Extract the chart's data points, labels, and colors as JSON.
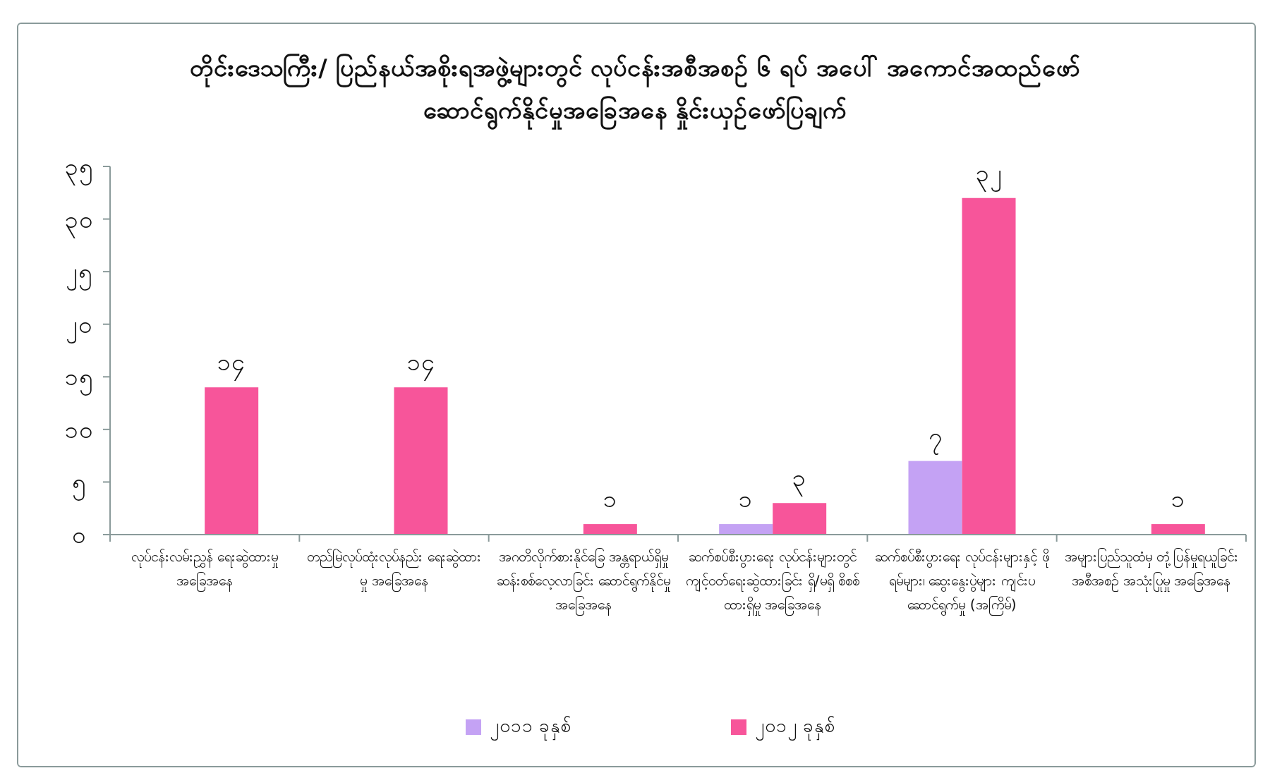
{
  "chart_data": {
    "type": "bar",
    "title": "တိုင်းဒေသကြီး/ ပြည်နယ်အစိုးရအဖွဲ့များတွင် လုပ်ငန်းအစီအစဉ် ၆ ရပ် အပေါ် အကောင်အထည်ဖော်ဆောင်ရွက်နိုင်မှုအခြေအနေ နှိုင်းယှဉ်ဖော်ပြချက်",
    "categories": [
      "လုပ်ငန်းလမ်းညွှန် ရေးဆွဲထားမှု အခြေအနေ",
      "တည်မြဲလုပ်ထုံးလုပ်နည်း ရေးဆွဲထားမှု အခြေအနေ",
      "အဂတိလိုက်စားနိုင်ခြေ အန္တရာယ်ရှိမှု ဆန်းစစ်လေ့လာခြင်း ဆောင်ရွက်နိုင်မှု အခြေအနေ",
      "ဆက်စပ်စီးပွားရေး လုပ်ငန်းများတွင် ကျင့်ဝတ်ရေးဆွဲထားခြင်း ရှိ/မရှိ စိစစ်ထားရှိမှု အခြေအနေ",
      "ဆက်စပ်စီးပွားရေး လုပ်ငန်းများနှင့် ဖိုရမ်များ၊ ဆွေးနွေးပွဲများ ကျင်းပဆောင်ရွက်မှု (အကြိမ်)",
      "အများပြည်သူထံမှ တုံ့ပြန်မှုရယူခြင်း အစီအစဉ် အသုံးပြုမှု အခြေအနေ"
    ],
    "series": [
      {
        "name": "၂၀၁၁ ခုနှစ်",
        "color": "#c4a2f4",
        "values": [
          0,
          0,
          0,
          1,
          7,
          0
        ],
        "value_labels": [
          null,
          null,
          null,
          "၁",
          "၇",
          null
        ]
      },
      {
        "name": "၂၀၁၂ ခုနှစ်",
        "color": "#f7559a",
        "values": [
          14,
          14,
          1,
          3,
          32,
          1
        ],
        "value_labels": [
          "၁၄",
          "၁၄",
          "၁",
          "၃",
          "၃၂",
          "၁"
        ]
      }
    ],
    "ylim": [
      0,
      35
    ],
    "yticks": [
      {
        "value": 0,
        "label": "၀"
      },
      {
        "value": 5,
        "label": "၅"
      },
      {
        "value": 10,
        "label": "၁၀"
      },
      {
        "value": 15,
        "label": "၁၅"
      },
      {
        "value": 20,
        "label": "၂၀"
      },
      {
        "value": 25,
        "label": "၂၅"
      },
      {
        "value": 30,
        "label": "၃၀"
      },
      {
        "value": 35,
        "label": "၃၅"
      }
    ],
    "grid": false,
    "legend": "bottom"
  }
}
